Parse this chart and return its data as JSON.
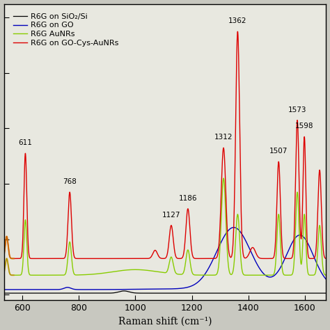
{
  "xlabel": "Raman shift (cm⁻¹)",
  "xlim": [
    535,
    1675
  ],
  "ylim": [
    -0.02,
    1.05
  ],
  "legend_entries": [
    "R6G on GO-Cys-AuNRs",
    "R6G AuNRs",
    "R6G on GO",
    "R6G on SiO₂/Si"
  ],
  "legend_colors": [
    "#dd0000",
    "#88cc00",
    "#0000bb",
    "#000000"
  ],
  "peak_annotations": [
    {
      "x": 611,
      "label": "611",
      "xoff": -8,
      "yoff": 0.01
    },
    {
      "x": 768,
      "label": "768",
      "xoff": -5,
      "yoff": 0.01
    },
    {
      "x": 1127,
      "label": "1127",
      "xoff": -5,
      "yoff": 0.01
    },
    {
      "x": 1186,
      "label": "1186",
      "xoff": 5,
      "yoff": 0.01
    },
    {
      "x": 1312,
      "label": "1312",
      "xoff": -8,
      "yoff": 0.01
    },
    {
      "x": 1362,
      "label": "1362",
      "xoff": 5,
      "yoff": 0.01
    },
    {
      "x": 1507,
      "label": "1507",
      "xoff": -8,
      "yoff": 0.01
    },
    {
      "x": 1573,
      "label": "1573",
      "xoff": -5,
      "yoff": 0.01
    },
    {
      "x": 1598,
      "label": "1598",
      "xoff": 5,
      "yoff": 0.01
    }
  ],
  "background_color": "#e8e8e0",
  "plot_bg": "#e8e8e0"
}
